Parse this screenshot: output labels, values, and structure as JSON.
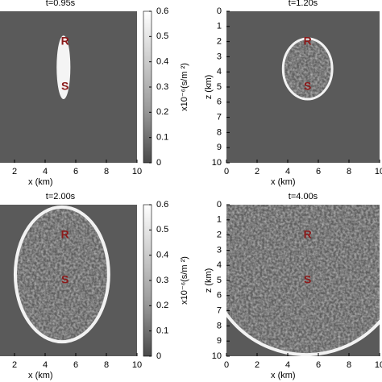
{
  "chart_data": [
    {
      "type": "kernel",
      "title": "t=0.95s",
      "xlabel": "x (km)",
      "xlim": [
        0,
        10
      ],
      "xticks": [
        2,
        4,
        6,
        8,
        10
      ],
      "ylim": [
        0,
        10
      ],
      "front": "rod",
      "annotations": [
        {
          "text": "R",
          "x": 5.3,
          "z": 2
        },
        {
          "text": "S",
          "x": 5.3,
          "z": 5
        }
      ],
      "colorbar": {
        "label": "x10⁻⁶(s/m ²)",
        "lim": [
          0,
          0.6
        ],
        "ticks": [
          0,
          0.1,
          0.2,
          0.3,
          0.4,
          0.5,
          0.6
        ]
      }
    },
    {
      "type": "kernel",
      "title": "t=1.20s",
      "xlabel": "x (km)",
      "ylabel": "z (km)",
      "xlim": [
        0,
        10
      ],
      "xticks": [
        0,
        2,
        4,
        6,
        8,
        10
      ],
      "ylim": [
        0,
        10
      ],
      "yticks": [
        0,
        1,
        2,
        3,
        4,
        5,
        6,
        7,
        8,
        9,
        10
      ],
      "front": "ellipse",
      "annotations": [
        {
          "text": "R",
          "x": 5.3,
          "z": 2
        },
        {
          "text": "S",
          "x": 5.3,
          "z": 5
        }
      ]
    },
    {
      "type": "kernel",
      "title": "t=2.00s",
      "xlabel": "x (km)",
      "xlim": [
        0,
        10
      ],
      "xticks": [
        2,
        4,
        6,
        8,
        10
      ],
      "ylim": [
        0,
        10
      ],
      "front": "circle",
      "annotations": [
        {
          "text": "R",
          "x": 5.3,
          "z": 2
        },
        {
          "text": "S",
          "x": 5.3,
          "z": 5
        }
      ],
      "colorbar": {
        "label": "x10⁻⁶(s/m ²)",
        "lim": [
          0,
          0.6
        ],
        "ticks": [
          0,
          0.1,
          0.2,
          0.3,
          0.4,
          0.5,
          0.6
        ]
      }
    },
    {
      "type": "kernel",
      "title": "t=4.00s",
      "xlabel": "x (km)",
      "ylabel": "z (km)",
      "xlim": [
        0,
        10
      ],
      "xticks": [
        0,
        2,
        4,
        6,
        8,
        10
      ],
      "ylim": [
        0,
        10
      ],
      "yticks": [
        0,
        1,
        2,
        3,
        4,
        5,
        6,
        7,
        8,
        9,
        10
      ],
      "front": "large",
      "annotations": [
        {
          "text": "R",
          "x": 5.3,
          "z": 2
        },
        {
          "text": "S",
          "x": 5.3,
          "z": 5
        }
      ]
    }
  ]
}
